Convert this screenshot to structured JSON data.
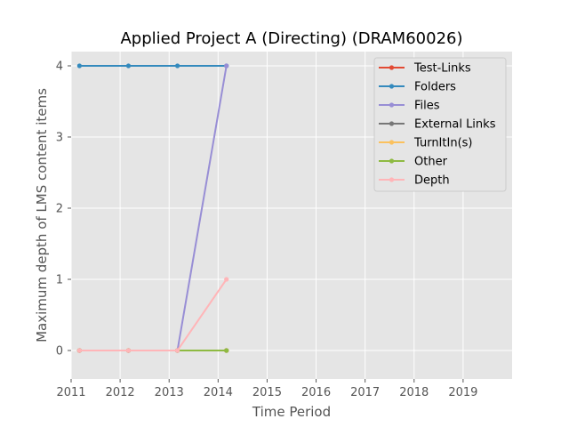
{
  "chart_data": {
    "type": "line",
    "title": "Applied Project A (Directing) (DRAM60026)",
    "xlabel": "Time Period",
    "ylabel": "Maximum depth of LMS content items",
    "xlim": [
      2011,
      2020
    ],
    "ylim": [
      -0.4,
      4.2
    ],
    "xticks": [
      2011,
      2012,
      2013,
      2014,
      2015,
      2016,
      2017,
      2018,
      2019
    ],
    "xtick_labels": [
      "2011",
      "2012",
      "2013",
      "2014",
      "2015",
      "2016",
      "2017",
      "2018",
      "2019"
    ],
    "yticks": [
      0,
      1,
      2,
      3,
      4
    ],
    "ytick_labels": [
      "0",
      "1",
      "2",
      "3",
      "4"
    ],
    "grid": true,
    "legend_position": "top-right",
    "x": [
      2011.17,
      2012.17,
      2013.17,
      2014.17
    ],
    "series": [
      {
        "name": "Test-Links",
        "color": "#E24A33",
        "values": [
          0,
          0,
          0,
          0
        ]
      },
      {
        "name": "Folders",
        "color": "#348ABD",
        "values": [
          4,
          4,
          4,
          4
        ]
      },
      {
        "name": "Files",
        "color": "#988ED5",
        "values": [
          0,
          0,
          0,
          4
        ]
      },
      {
        "name": "External Links",
        "color": "#777777",
        "values": [
          0,
          0,
          0,
          0
        ]
      },
      {
        "name": "TurnItIn(s)",
        "color": "#FBC15E",
        "values": [
          0,
          0,
          0,
          0
        ]
      },
      {
        "name": "Other",
        "color": "#8EBA42",
        "values": [
          0,
          0,
          0,
          0
        ]
      },
      {
        "name": "Depth",
        "color": "#FFB5B8",
        "values": [
          0,
          0,
          0,
          1
        ]
      }
    ]
  }
}
